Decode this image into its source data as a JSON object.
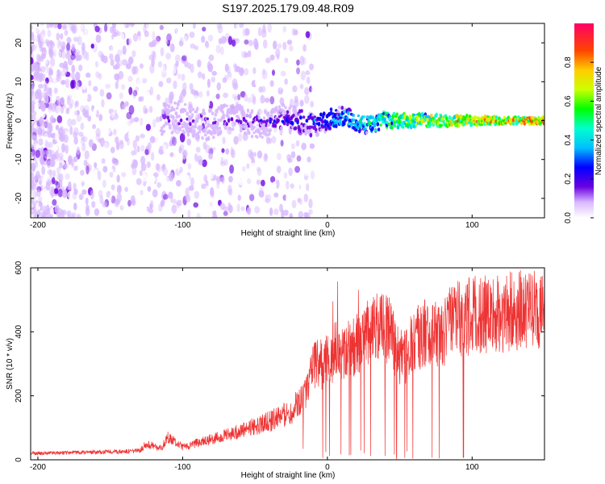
{
  "title": "S197.2025.179.09.48.R09",
  "chart_data": [
    {
      "type": "heatmap",
      "xlabel": "Height of straight line (km)",
      "ylabel": "Frequency (Hz)",
      "xlim": [
        -205,
        150
      ],
      "ylim": [
        -25,
        25
      ],
      "xticks": [
        -200,
        -100,
        0,
        100
      ],
      "yticks": [
        -20,
        -10,
        0,
        10,
        20
      ],
      "colorbar": {
        "label": "Normalized spectral amplitude",
        "range": [
          0,
          1
        ],
        "ticks": [
          0.0,
          0.2,
          0.4,
          0.6,
          0.8
        ]
      },
      "description_series": [
        {
          "x": -200,
          "y": 0,
          "amp": 0.05
        },
        {
          "x": -110,
          "y": 0,
          "amp": 0.2
        },
        {
          "x": -50,
          "y": 1,
          "amp": 0.25
        },
        {
          "x": 0,
          "y": 0,
          "amp": 0.4
        },
        {
          "x": 50,
          "y": 0,
          "amp": 0.7
        },
        {
          "x": 100,
          "y": 0,
          "amp": 0.85
        },
        {
          "x": 150,
          "y": 0,
          "amp": 0.9
        }
      ]
    },
    {
      "type": "line",
      "xlabel": "Height of straight line (km)",
      "ylabel": "SNR (10 * v/v)",
      "xlim": [
        -205,
        150
      ],
      "ylim": [
        0,
        600
      ],
      "xticks": [
        -200,
        -100,
        0,
        100
      ],
      "yticks": [
        0,
        200,
        400,
        600
      ],
      "color": "#ee3333",
      "series": [
        {
          "x": [
            -205,
            -180,
            -150,
            -130,
            -125,
            -115,
            -110,
            -100,
            -80,
            -60,
            -40,
            -25,
            -15,
            -10,
            0,
            5,
            10,
            20,
            30,
            35,
            40,
            45,
            50,
            55,
            60,
            70,
            80,
            85,
            90,
            100,
            110,
            120,
            130,
            140,
            150
          ],
          "values": [
            20,
            22,
            25,
            28,
            50,
            35,
            70,
            40,
            65,
            90,
            120,
            150,
            220,
            290,
            310,
            340,
            330,
            360,
            400,
            430,
            420,
            380,
            320,
            330,
            380,
            400,
            390,
            430,
            440,
            450,
            455,
            460,
            465,
            470,
            470
          ]
        }
      ]
    }
  ]
}
